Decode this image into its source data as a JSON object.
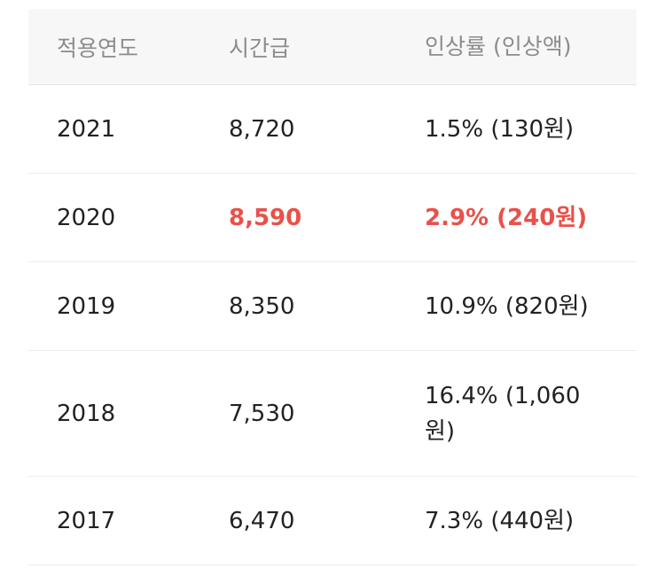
{
  "table": {
    "headers": {
      "year": "적용연도",
      "hourly_wage": "시간급",
      "increase": "인상률 (인상액)"
    },
    "rows": [
      {
        "year": "2021",
        "hourly_wage": "8,720",
        "increase": "1.5% (130원)",
        "highlighted": false
      },
      {
        "year": "2020",
        "hourly_wage": "8,590",
        "increase": "2.9% (240원)",
        "highlighted": true
      },
      {
        "year": "2019",
        "hourly_wage": "8,350",
        "increase": "10.9% (820원)",
        "highlighted": false
      },
      {
        "year": "2018",
        "hourly_wage": "7,530",
        "increase": "16.4% (1,060원)",
        "highlighted": false
      },
      {
        "year": "2017",
        "hourly_wage": "6,470",
        "increase": "7.3% (440원)",
        "highlighted": false
      }
    ],
    "colors": {
      "highlight": "#e8514a",
      "header_bg": "#f7f7f7",
      "header_text": "#8c8c8c",
      "body_text": "#222222"
    }
  }
}
